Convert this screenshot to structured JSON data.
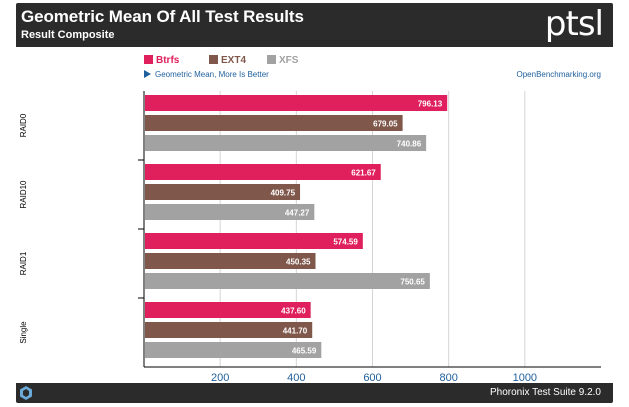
{
  "header": {
    "title": "Geometric Mean Of All Test Results",
    "subtitle": "Result Composite",
    "logo_text": "ptsl",
    "logo_icon": "pts-logo-icon"
  },
  "footer": {
    "text": "Phoronix Test Suite 9.2.0",
    "icon": "phoronix-badge-icon"
  },
  "chart_data": {
    "type": "bar",
    "orientation": "horizontal",
    "note": "Geometric Mean, More Is Better",
    "watermark": "OpenBenchmarking.org",
    "categories": [
      "RAID0",
      "RAID10",
      "RAID1",
      "Single"
    ],
    "series": [
      {
        "name": "Btrfs",
        "color": "#e0205c",
        "values": [
          796.13,
          621.67,
          574.59,
          437.6
        ]
      },
      {
        "name": "EXT4",
        "color": "#7f574b",
        "values": [
          679.05,
          409.75,
          450.35,
          441.7
        ]
      },
      {
        "name": "XFS",
        "color": "#a2a2a2",
        "values": [
          740.86,
          447.27,
          750.65,
          465.59
        ]
      }
    ],
    "value_labels": [
      [
        "796.13",
        "621.67",
        "574.59",
        "437.60"
      ],
      [
        "679.05",
        "409.75",
        "450.35",
        "441.70"
      ],
      [
        "740.86",
        "447.27",
        "750.65",
        "465.59"
      ]
    ],
    "xlim": [
      0,
      1200
    ],
    "xticks": [
      200,
      400,
      600,
      800,
      1000
    ],
    "xtick_labels": [
      "200",
      "400",
      "600",
      "800",
      "1000"
    ],
    "grid": true,
    "legend_position": "top-left",
    "colors": {
      "frame": "#2b2b2b",
      "grid": "#d5d5d5",
      "tick_label": "#1f5f9c",
      "note": "#1f5f9c"
    }
  }
}
